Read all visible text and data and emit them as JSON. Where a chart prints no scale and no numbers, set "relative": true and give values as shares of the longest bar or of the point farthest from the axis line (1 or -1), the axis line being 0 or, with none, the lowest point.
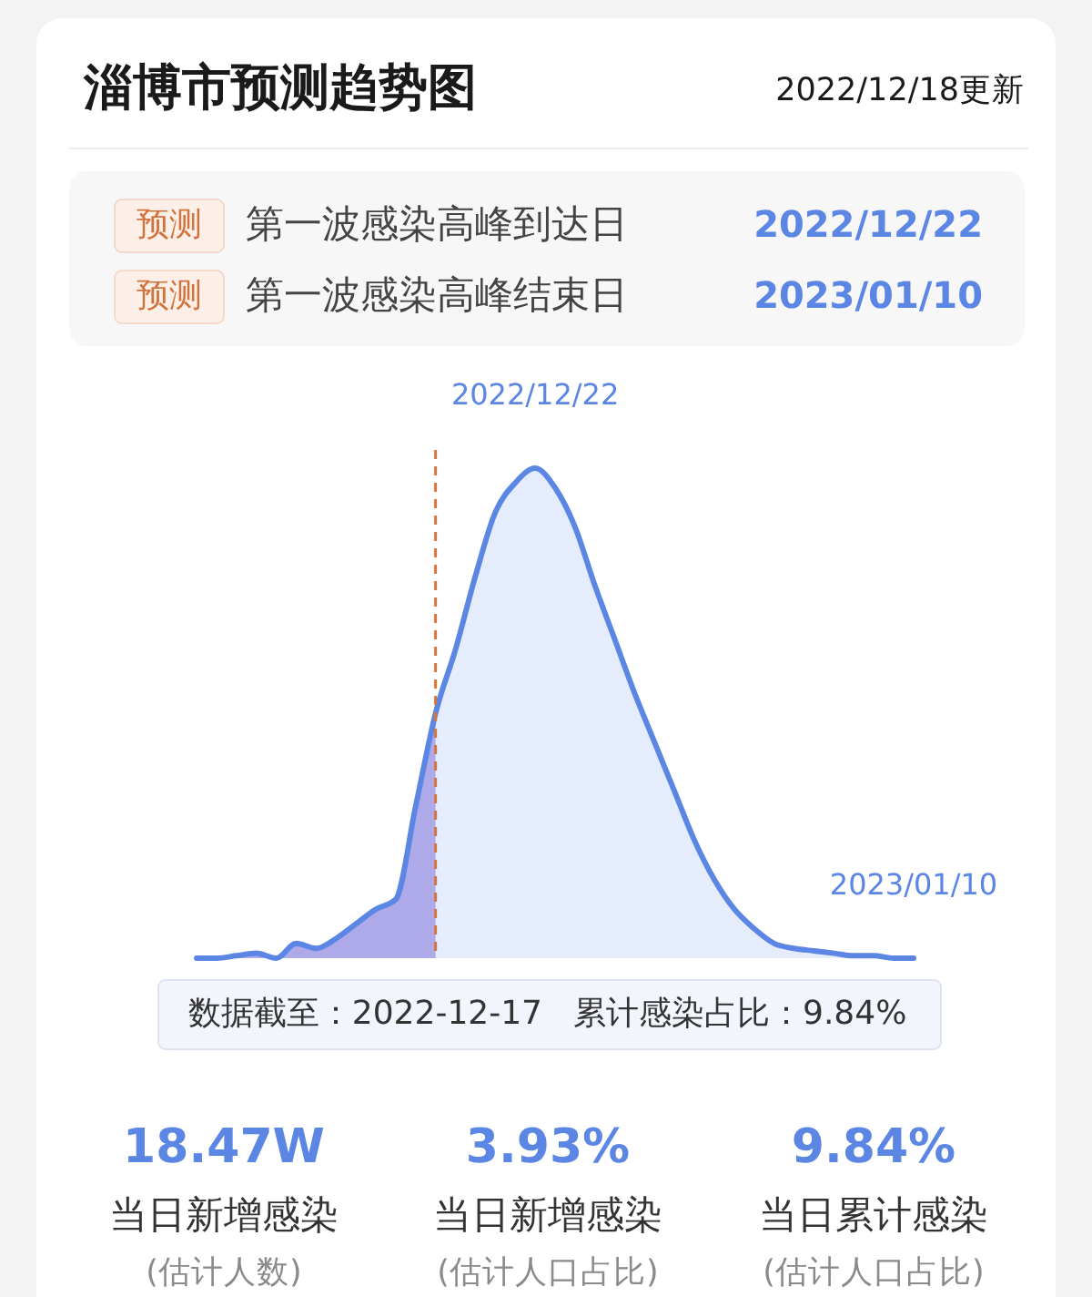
{
  "chart_data": {
    "type": "area",
    "title": "淄博市预测趋势图",
    "subtitle": "2022/12/18更新",
    "categories": [
      null,
      null,
      null,
      null,
      null,
      null,
      null,
      null,
      null,
      null,
      null,
      null,
      null,
      null,
      null,
      null,
      null,
      null,
      null,
      null,
      null,
      null,
      null,
      null,
      null,
      null,
      null,
      null,
      null,
      null,
      null,
      null,
      null,
      null,
      null,
      null,
      null
    ],
    "relative": true,
    "series": [
      {
        "color": "#e5ecfb",
        "values": [
          null,
          null,
          null,
          null,
          null,
          null,
          null,
          null,
          null,
          null,
          null,
          null,
          0.5,
          0.63,
          0.78,
          0.91,
          0.97,
          1,
          0.96,
          0.88,
          0.76,
          0.65,
          0.54,
          0.44,
          0.34,
          0.24,
          0.16,
          0.1,
          0.06,
          0.03,
          0.02,
          0.015,
          0.01,
          0.005,
          0.005,
          0,
          0
        ]
      },
      {
        "color": "#aeaaea",
        "values": [
          0,
          0,
          0.005,
          0.01,
          0,
          0.03,
          0.02,
          0.04,
          0.07,
          0.1,
          0.12,
          0.31,
          0.5,
          null,
          null,
          null,
          null,
          null,
          null,
          null,
          null,
          null,
          null,
          null,
          null,
          null,
          null,
          null,
          null,
          null,
          null,
          null,
          null,
          null,
          null,
          null,
          null
        ]
      },
      {
        "type": "line",
        "color": "#5b86e4",
        "values": [
          0,
          0,
          0.005,
          0.01,
          0,
          0.03,
          0.02,
          0.04,
          0.07,
          0.1,
          0.12,
          0.31,
          0.5,
          0.63,
          0.78,
          0.91,
          0.97,
          1,
          0.96,
          0.88,
          0.76,
          0.65,
          0.54,
          0.44,
          0.34,
          0.24,
          0.16,
          0.1,
          0.06,
          0.03,
          0.02,
          0.015,
          0.01,
          0.005,
          0.005,
          0,
          0
        ]
      }
    ],
    "annotations": [
      {
        "text": "2022/12/22",
        "y": 1
      },
      {
        "text": "2023/01/10",
        "y": 0
      },
      "预测",
      "第一波感染高峰到达日",
      "2022/12/22",
      "预测",
      "第一波感染高峰结束日",
      "2023/01/10",
      "数据截至：2022-12-17",
      "累计感染占比：9.84%",
      "18.47W",
      "当日新增感染",
      "(估计人数)",
      "3.93%",
      "当日新增感染",
      "(估计人口占比)",
      "9.84%",
      "当日累计感染",
      "(估计人口占比)"
    ]
  }
}
